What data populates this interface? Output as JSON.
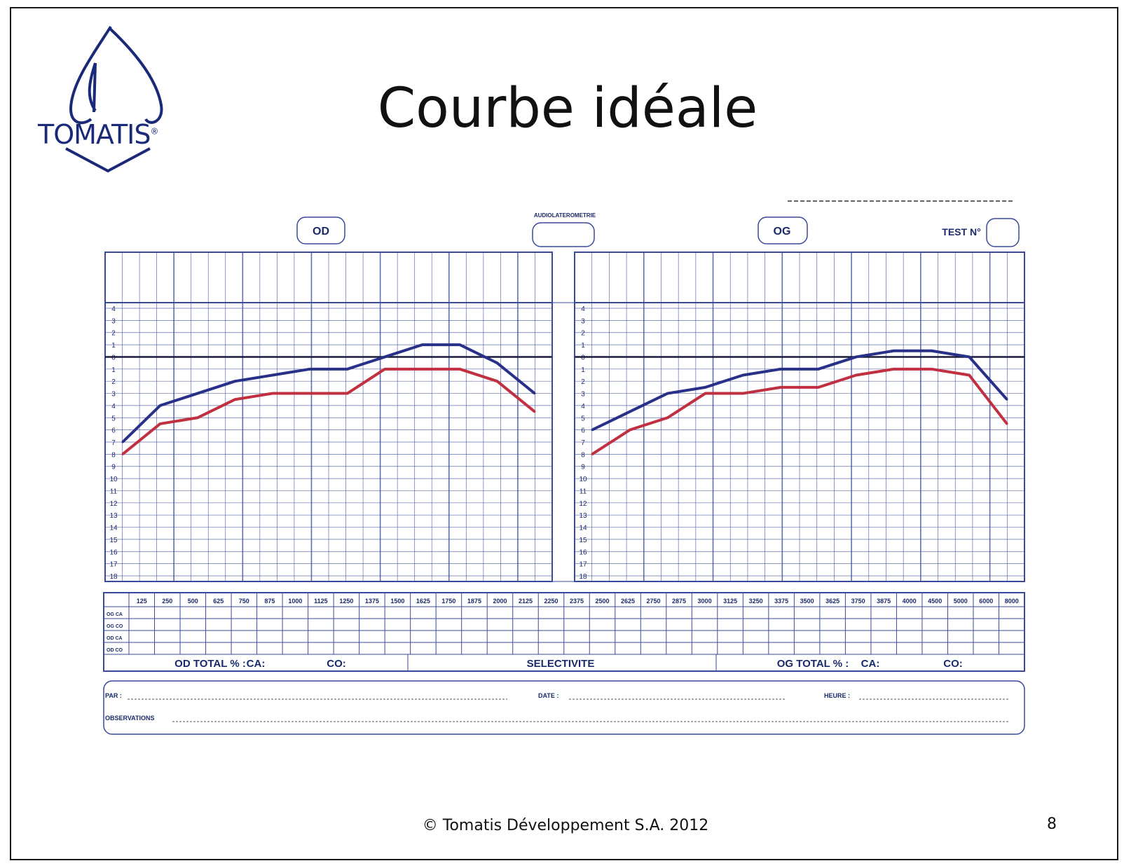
{
  "slide": {
    "logo_text": "TOMATIS",
    "logo_mark": "®",
    "title": "Courbe idéale",
    "footer": "© Tomatis Développement S.A. 2012",
    "page_number": "8"
  },
  "form": {
    "header_center": "AUDIOLATEROMETRIE",
    "left_ear": "OD",
    "right_ear": "OG",
    "test_label": "TEST N°",
    "rows": [
      "OG CA",
      "OG CO",
      "OD CA",
      "OD CO"
    ],
    "frequencies": [
      "125",
      "250",
      "500",
      "625",
      "750",
      "875",
      "1000",
      "1125",
      "1250",
      "1375",
      "1500",
      "1625",
      "1750",
      "1875",
      "2000",
      "2125",
      "2250",
      "2375",
      "2500",
      "2625",
      "2750",
      "2875",
      "3000",
      "3125",
      "3250",
      "3375",
      "3500",
      "3625",
      "3750",
      "3875",
      "4000",
      "4500",
      "5000",
      "6000",
      "8000"
    ],
    "od_total": "OD TOTAL % :",
    "og_total": "OG TOTAL % :",
    "ca": "CA:",
    "co": "CO:",
    "selectivity": "SELECTIVITE",
    "par": "PAR :",
    "date": "DATE :",
    "heure": "HEURE :",
    "observations": "OBSERVATIONS"
  },
  "colors": {
    "air": "#283088",
    "bone": "#c03040",
    "grid": "#3a4a9a",
    "zero": "#1a1a3a"
  },
  "chart_data": [
    {
      "type": "line",
      "title": "OD",
      "x": [
        "125",
        "250",
        "500",
        "750",
        "1000",
        "1250",
        "1500",
        "2000",
        "3000",
        "4000",
        "6000",
        "8000"
      ],
      "ylim": [
        -4,
        18
      ],
      "y_inverted": true,
      "grid": true,
      "series": [
        {
          "values": [
            7,
            4,
            3,
            2,
            1.5,
            1,
            1,
            0,
            -1,
            -1,
            0.5,
            3
          ]
        },
        {
          "values": [
            8,
            5.5,
            5,
            3.5,
            3,
            3,
            3,
            1,
            1,
            1,
            2,
            4.5
          ]
        }
      ]
    },
    {
      "type": "line",
      "title": "OG",
      "x": [
        "125",
        "250",
        "500",
        "750",
        "1000",
        "1250",
        "1500",
        "2000",
        "3000",
        "4000",
        "6000",
        "8000"
      ],
      "ylim": [
        -4,
        18
      ],
      "y_inverted": true,
      "grid": true,
      "series": [
        {
          "values": [
            6,
            4.5,
            3,
            2.5,
            1.5,
            1,
            1,
            0,
            -0.5,
            -0.5,
            0,
            3.5
          ]
        },
        {
          "values": [
            8,
            6,
            5,
            3,
            3,
            2.5,
            2.5,
            1.5,
            1,
            1,
            1.5,
            5.5
          ]
        }
      ]
    }
  ]
}
